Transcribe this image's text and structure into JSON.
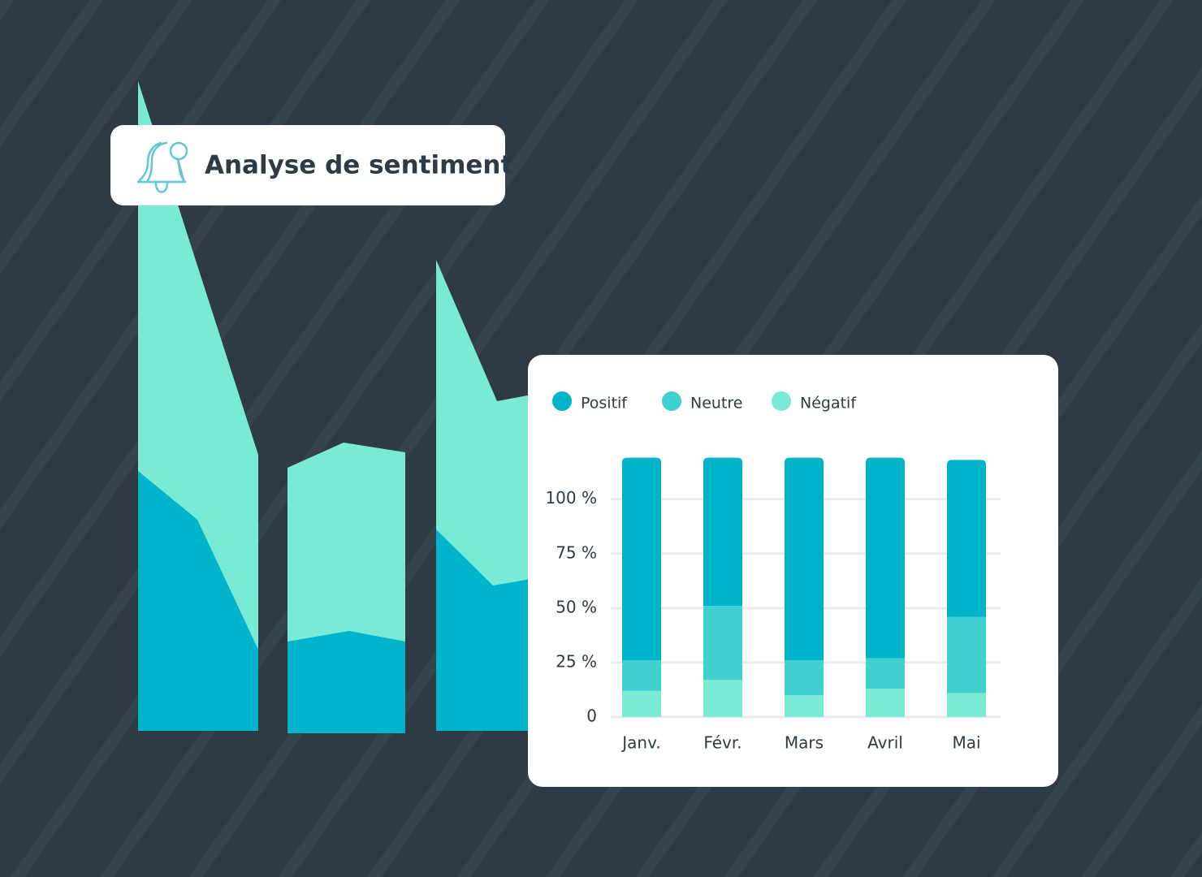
{
  "chart_data": {
    "type": "stacked_bar",
    "title": "Analyse de sentiment",
    "categories": [
      "Janv.",
      "Févr.",
      "Mars",
      "Avril",
      "Mai"
    ],
    "series": [
      {
        "name": "Négatif",
        "color": "#79ead4",
        "values": [
          12,
          17,
          10,
          13,
          11
        ]
      },
      {
        "name": "Neutre",
        "color": "#3fd0cf",
        "values": [
          14,
          34,
          16,
          14,
          35
        ]
      },
      {
        "name": "Positif",
        "color": "#00b4cc",
        "values": [
          93,
          68,
          93,
          92,
          72
        ]
      }
    ],
    "legend_order": [
      2,
      1,
      0
    ],
    "ylim": [
      0,
      120
    ],
    "yticks": [
      0,
      {
        "value": 25,
        "label": "25 %"
      },
      {
        "value": 50,
        "label": "50 %"
      },
      {
        "value": 75,
        "label": "75 %"
      },
      {
        "value": 100,
        "label": "100 %"
      }
    ],
    "grid": true
  }
}
